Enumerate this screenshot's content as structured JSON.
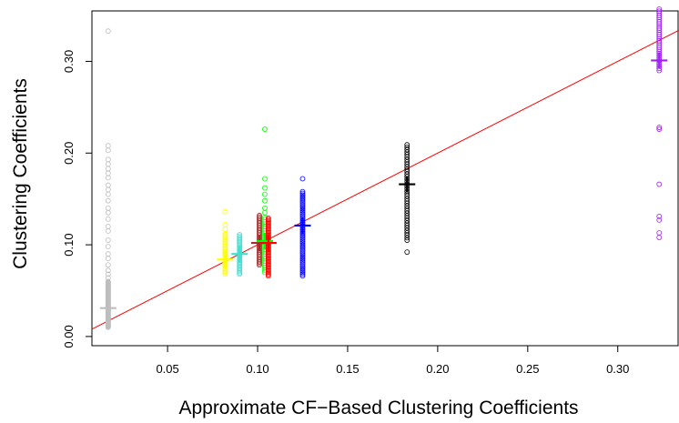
{
  "chart_data": {
    "type": "scatter",
    "title": "",
    "xlabel": "Approximate CF−Based Clustering Coefficients",
    "ylabel": "Clustering Coefficients",
    "xlim": [
      0.008,
      0.334
    ],
    "ylim": [
      -0.01,
      0.355
    ],
    "x_ticks": [
      0.05,
      0.1,
      0.15,
      0.2,
      0.25,
      0.3
    ],
    "x_tick_labels": [
      "0.05",
      "0.10",
      "0.15",
      "0.20",
      "0.25",
      "0.30"
    ],
    "y_ticks": [
      0.0,
      0.1,
      0.2,
      0.3
    ],
    "y_tick_labels": [
      "0.00",
      "0.10",
      "0.20",
      "0.30"
    ],
    "grid": false,
    "legend": "none",
    "reference_line": {
      "slope": 1,
      "intercept": 0,
      "color": "#ff0000"
    },
    "groups": [
      {
        "x": 0.017,
        "color": "#bebebe",
        "mean": 0.031,
        "y_min": 0.01,
        "y_max": 0.06,
        "density": 140,
        "outliers": [
          0.333,
          0.208,
          0.203,
          0.193,
          0.188,
          0.183,
          0.178,
          0.173,
          0.165,
          0.16,
          0.155,
          0.148,
          0.14,
          0.135,
          0.128,
          0.12,
          0.115,
          0.105,
          0.098,
          0.09,
          0.085,
          0.078,
          0.072,
          0.068,
          0.064
        ]
      },
      {
        "x": 0.082,
        "color": "#ffff00",
        "mean": 0.084,
        "y_min": 0.068,
        "y_max": 0.112,
        "density": 30,
        "outliers": [
          0.136,
          0.122,
          0.117
        ]
      },
      {
        "x": 0.09,
        "color": "#40e0d0",
        "mean": 0.09,
        "y_min": 0.068,
        "y_max": 0.111,
        "density": 30,
        "outliers": []
      },
      {
        "x": 0.101,
        "color": "#a52a2a",
        "mean": 0.102,
        "y_min": 0.078,
        "y_max": 0.132,
        "density": 35,
        "outliers": []
      },
      {
        "x": 0.104,
        "color": "#00ff00",
        "mean": 0.104,
        "y_min": 0.07,
        "y_max": 0.13,
        "density": 25,
        "outliers": [
          0.226,
          0.172,
          0.162,
          0.155,
          0.148,
          0.14,
          0.135
        ]
      },
      {
        "x": 0.106,
        "color": "#ff0000",
        "mean": 0.102,
        "y_min": 0.066,
        "y_max": 0.129,
        "density": 45,
        "outliers": []
      },
      {
        "x": 0.125,
        "color": "#0000ff",
        "mean": 0.121,
        "y_min": 0.066,
        "y_max": 0.158,
        "density": 50,
        "outliers": [
          0.172
        ]
      },
      {
        "x": 0.183,
        "color": "#000000",
        "mean": 0.166,
        "y_min": 0.105,
        "y_max": 0.209,
        "density": 40,
        "outliers": [
          0.092
        ]
      },
      {
        "x": 0.323,
        "color": "#a020f0",
        "mean": 0.301,
        "y_min": 0.29,
        "y_max": 0.357,
        "density": 30,
        "outliers": [
          0.228,
          0.226,
          0.166,
          0.131,
          0.127,
          0.113,
          0.108
        ]
      }
    ]
  }
}
